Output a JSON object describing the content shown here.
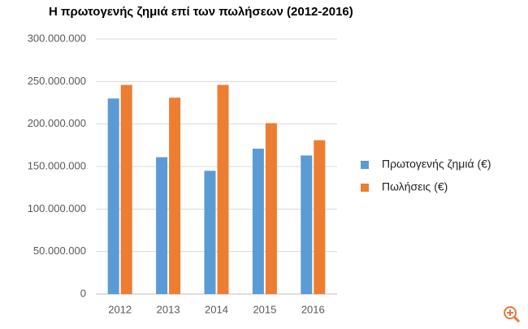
{
  "chart_data": {
    "type": "bar",
    "title": "Η πρωτογενής ζημιά επί των πωλήσεων (2012-2016)",
    "categories": [
      "2012",
      "2013",
      "2014",
      "2015",
      "2016"
    ],
    "series": [
      {
        "name": "Πρωτογενής ζημιά (€)",
        "color": "#5b9bd5",
        "values": [
          230000000,
          161000000,
          145000000,
          171000000,
          163000000
        ]
      },
      {
        "name": "Πωλήσεις (€)",
        "color": "#ed7d31",
        "values": [
          246000000,
          231000000,
          246000000,
          201000000,
          181000000
        ]
      }
    ],
    "ylim": [
      0,
      300000000
    ],
    "yticks": [
      0,
      {
        "value": 50000000,
        "label": "50.000.000"
      },
      {
        "value": 100000000,
        "label": "100.000.000"
      },
      {
        "value": 150000000,
        "label": "150.000.000"
      },
      {
        "value": 200000000,
        "label": "200.000.000"
      },
      {
        "value": 250000000,
        "label": "250.000.000"
      },
      {
        "value": 300000000,
        "label": "300.000.000"
      }
    ],
    "grid": true,
    "legend": "right"
  }
}
